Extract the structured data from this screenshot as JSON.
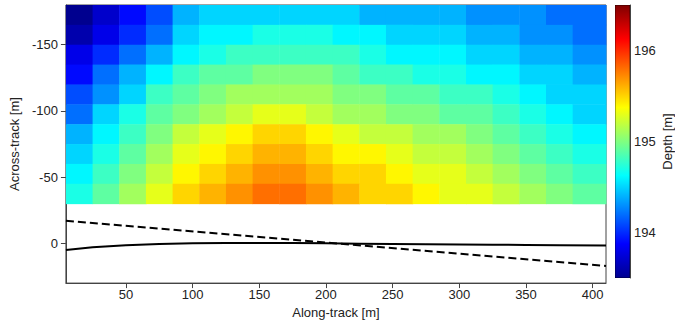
{
  "chart_data": {
    "type": "heatmap",
    "xlabel": "Along-track [m]",
    "ylabel": "Across-track [m]",
    "xlim": [
      5,
      410
    ],
    "ylim": [
      -180,
      30
    ],
    "xticks": [
      50,
      100,
      150,
      200,
      250,
      300,
      350,
      400
    ],
    "yticks": [
      -150,
      -100,
      -50,
      0
    ],
    "x_edges": [
      5,
      25,
      45,
      65,
      85,
      105,
      125,
      145,
      165,
      185,
      205,
      225,
      245,
      265,
      285,
      305,
      325,
      345,
      365,
      385,
      410
    ],
    "y_edges": [
      -180,
      -165,
      -150,
      -135,
      -120,
      -105,
      -90,
      -75,
      -60,
      -45,
      -30
    ],
    "depth": [
      [
        193.5,
        193.7,
        193.9,
        194.1,
        194.4,
        194.5,
        194.5,
        194.5,
        194.5,
        194.5,
        194.5,
        194.4,
        194.4,
        194.4,
        194.4,
        194.3,
        194.3,
        194.3,
        194.2,
        194.2
      ],
      [
        193.6,
        193.8,
        194.0,
        194.2,
        194.5,
        194.6,
        194.6,
        194.7,
        194.7,
        194.7,
        194.6,
        194.6,
        194.5,
        194.5,
        194.5,
        194.4,
        194.4,
        194.3,
        194.3,
        194.2
      ],
      [
        193.8,
        194.0,
        194.2,
        194.4,
        194.6,
        194.7,
        194.8,
        194.8,
        194.8,
        194.8,
        194.8,
        194.7,
        194.6,
        194.6,
        194.6,
        194.5,
        194.5,
        194.4,
        194.4,
        194.3
      ],
      [
        193.9,
        194.2,
        194.4,
        194.6,
        194.8,
        194.9,
        194.9,
        195.0,
        195.0,
        195.0,
        194.9,
        194.8,
        194.8,
        194.7,
        194.7,
        194.6,
        194.6,
        194.5,
        194.5,
        194.4
      ],
      [
        194.1,
        194.3,
        194.5,
        194.8,
        194.9,
        195.0,
        195.1,
        195.1,
        195.1,
        195.1,
        195.0,
        195.0,
        194.9,
        194.9,
        194.8,
        194.8,
        194.7,
        194.6,
        194.5,
        194.5
      ],
      [
        194.2,
        194.5,
        194.7,
        194.9,
        195.0,
        195.1,
        195.2,
        195.3,
        195.3,
        195.2,
        195.1,
        195.1,
        195.0,
        195.0,
        194.9,
        194.9,
        194.8,
        194.7,
        194.6,
        194.5
      ],
      [
        194.4,
        194.6,
        194.8,
        195.0,
        195.2,
        195.3,
        195.4,
        195.5,
        195.5,
        195.4,
        195.3,
        195.2,
        195.2,
        195.1,
        195.1,
        195.0,
        194.9,
        194.8,
        194.7,
        194.6
      ],
      [
        194.5,
        194.7,
        194.9,
        195.1,
        195.3,
        195.4,
        195.5,
        195.6,
        195.6,
        195.5,
        195.4,
        195.4,
        195.3,
        195.2,
        195.2,
        195.1,
        195.0,
        194.9,
        194.8,
        194.7
      ],
      [
        194.6,
        194.8,
        195.0,
        195.2,
        195.4,
        195.5,
        195.6,
        195.7,
        195.7,
        195.6,
        195.5,
        195.5,
        195.4,
        195.3,
        195.3,
        195.2,
        195.1,
        195.0,
        194.9,
        194.8
      ],
      [
        194.7,
        194.9,
        195.1,
        195.3,
        195.5,
        195.6,
        195.7,
        195.8,
        195.8,
        195.7,
        195.6,
        195.5,
        195.5,
        195.4,
        195.3,
        195.3,
        195.2,
        195.1,
        195.0,
        194.9
      ]
    ],
    "colorbar": {
      "label": "Depth [m]",
      "range": [
        193.5,
        196.5
      ],
      "ticks": [
        194,
        195,
        196
      ]
    },
    "lines": [
      {
        "type": "line",
        "x": [
          5,
          25,
          50,
          75,
          100,
          125,
          150,
          175,
          200,
          225,
          250,
          275,
          300,
          325,
          350,
          375,
          410
        ],
        "values": [
          5,
          3,
          1.5,
          0.5,
          0,
          -0.3,
          -0.3,
          -0.2,
          0,
          0.2,
          0.4,
          0.6,
          0.8,
          1,
          1.2,
          1.4,
          1.6
        ],
        "color": "#000000",
        "line_style": "solid"
      },
      {
        "type": "line",
        "x": [
          5,
          410
        ],
        "values": [
          -17,
          17
        ],
        "color": "#000000",
        "line_style": "dashed"
      }
    ]
  }
}
